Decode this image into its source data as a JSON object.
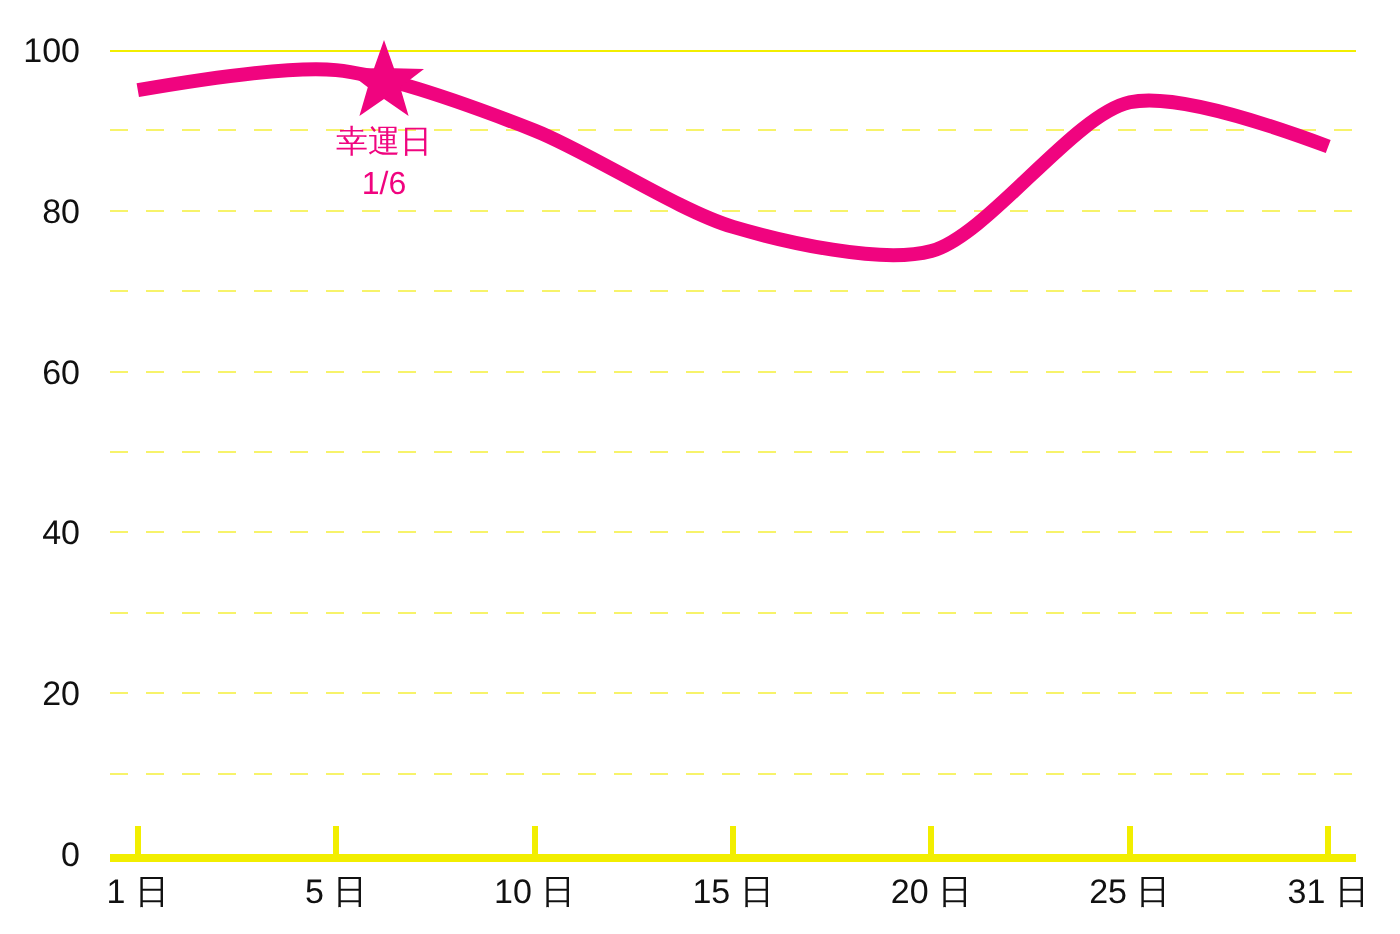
{
  "chart_data": {
    "type": "line",
    "categories": [
      "1 日",
      "5 日",
      "10 日",
      "15 日",
      "20 日",
      "25 日",
      "31 日"
    ],
    "series": [
      {
        "color": "#f0047f",
        "values": [
          95,
          97.5,
          90,
          78,
          75,
          93.5,
          88
        ]
      }
    ],
    "ylim": [
      0,
      100
    ],
    "yticks": [
      0,
      20,
      40,
      60,
      80,
      100
    ],
    "grid": "y",
    "marker": "none",
    "line_style": "solid",
    "annotations": [
      "幸運日\n1/6"
    ]
  }
}
